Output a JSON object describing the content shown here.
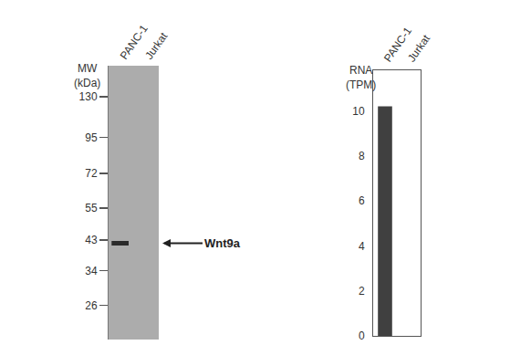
{
  "chart_data": [
    {
      "type": "western_blot",
      "y_label": "MW\n(kDa)",
      "categories": [
        "PANC-1",
        "Jurkat"
      ],
      "log": "y",
      "ylim": [
        20,
        165
      ],
      "yticks": [
        130,
        95,
        72,
        55,
        43,
        34,
        26
      ],
      "bands": [
        {
          "lane": "PANC-1",
          "mw": 42
        }
      ],
      "annotation": "Wnt9a",
      "grid": false
    },
    {
      "type": "bar",
      "y_label": "RNA\n(TPM)",
      "categories": [
        "PANC-1",
        "Jurkat"
      ],
      "values": [
        10.2,
        0
      ],
      "color": "#404040",
      "ylim": [
        0,
        11.8
      ],
      "yticks": [
        0,
        2,
        4,
        6,
        8,
        10
      ],
      "grid": false
    }
  ]
}
